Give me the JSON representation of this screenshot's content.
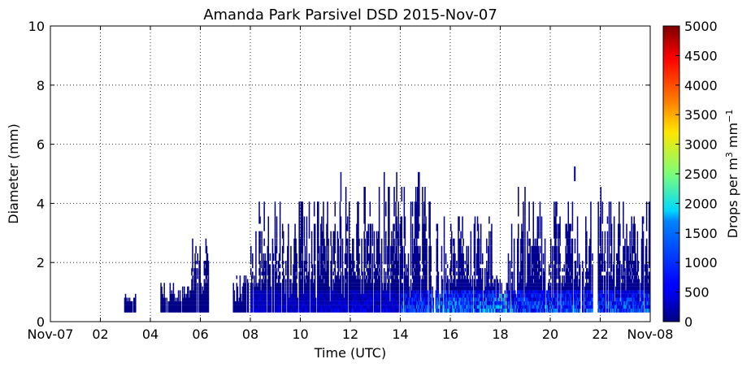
{
  "chart_data": {
    "type": "heatmap",
    "title": "Amanda Park Parsivel DSD 2015-Nov-07",
    "xlabel": "Time (UTC)",
    "ylabel": "Diameter (mm)",
    "xlim": [
      0,
      24
    ],
    "ylim": [
      0,
      10
    ],
    "x_ticks": [
      {
        "value": 0,
        "label": "Nov-07"
      },
      {
        "value": 2,
        "label": "02"
      },
      {
        "value": 4,
        "label": "04"
      },
      {
        "value": 6,
        "label": "06"
      },
      {
        "value": 8,
        "label": "08"
      },
      {
        "value": 10,
        "label": "10"
      },
      {
        "value": 12,
        "label": "12"
      },
      {
        "value": 14,
        "label": "14"
      },
      {
        "value": 16,
        "label": "16"
      },
      {
        "value": 18,
        "label": "18"
      },
      {
        "value": 20,
        "label": "20"
      },
      {
        "value": 22,
        "label": "22"
      },
      {
        "value": 24,
        "label": "Nov-08"
      }
    ],
    "y_ticks": [
      0,
      2,
      4,
      6,
      8,
      10
    ],
    "grid": true,
    "colormap": "jet",
    "colorbar": {
      "label_text": "Drops per m",
      "label_sup1": "3",
      "label_mid": " mm",
      "label_sup2": "−1",
      "min": 0,
      "max": 5000,
      "ticks": [
        0,
        500,
        1000,
        1500,
        2000,
        2500,
        3000,
        3500,
        4000,
        4500,
        5000
      ]
    },
    "rain_periods": [
      {
        "start": 2.95,
        "end": 3.4,
        "max_diameter": 0.9,
        "peak": 80
      },
      {
        "start": 4.4,
        "end": 5.6,
        "max_diameter": 1.3,
        "peak": 80
      },
      {
        "start": 5.6,
        "end": 6.3,
        "max_diameter": 3.0,
        "peak": 150
      },
      {
        "start": 7.3,
        "end": 7.9,
        "max_diameter": 1.6,
        "peak": 150
      },
      {
        "start": 8.0,
        "end": 11.2,
        "max_diameter": 4.1,
        "peak": 800
      },
      {
        "start": 11.2,
        "end": 14.0,
        "max_diameter": 5.1,
        "peak": 900
      },
      {
        "start": 14.0,
        "end": 15.2,
        "max_diameter": 4.6,
        "peak": 1800
      },
      {
        "start": 15.2,
        "end": 17.7,
        "max_diameter": 3.6,
        "peak": 2200
      },
      {
        "start": 17.7,
        "end": 18.3,
        "max_diameter": 1.5,
        "peak": 2600
      },
      {
        "start": 18.3,
        "end": 24.0,
        "max_diameter": 4.1,
        "peak": 1900
      }
    ],
    "outliers": [
      {
        "time": 20.95,
        "diameter": 5.0
      }
    ]
  }
}
